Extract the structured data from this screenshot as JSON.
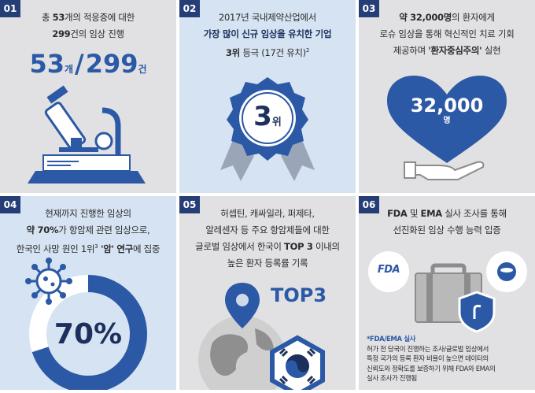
{
  "panels": [
    {
      "num": "01",
      "line1_a": "총 ",
      "line1_b": "53",
      "line1_c": "개의 적응증에 대한",
      "line2_a": "299",
      "line2_b": "건의 임상 진행",
      "big_a": "53",
      "big_unit_a": "개",
      "big_sep": "/",
      "big_b": "299",
      "big_unit_b": "건",
      "icon": "microscope-icon"
    },
    {
      "num": "02",
      "line1": "2017년 국내제약산업에서",
      "line2": "가장 많이 신규 임상을 유치한 기업",
      "line3_a": "3위",
      "line3_b": " 등극 (17건 유치)",
      "line3_sup": "2",
      "badge_num": "3",
      "badge_unit": "위",
      "icon": "award-badge-icon"
    },
    {
      "num": "03",
      "line1_a": "약 32,000명",
      "line1_b": "의 환자에게",
      "line2": "로슈 임상을 통해 혁신적인 치료 기회",
      "line3_a": "제공하며 ",
      "line3_b": "'환자중심주의'",
      "line3_c": " 실현",
      "heart_num": "32,000",
      "heart_unit": "명",
      "icon": "heart-hand-icon"
    },
    {
      "num": "04",
      "line1": "현재까지 진행한 임상의",
      "line2_a": "약 70%",
      "line2_b": "가 항암제 관련 임상으로,",
      "line3_a": "한국인 사망 원인 1위",
      "line3_sup": "3",
      "line3_b": " '암' 연구",
      "line3_c": "에 집중",
      "donut_label": "70%",
      "donut_value": 70,
      "icon": "virus-icon"
    },
    {
      "num": "05",
      "line1": "허셉틴, 캐싸일라, 퍼제타,",
      "line2": "알레센자 등 주요 항암제들에 대한",
      "line3_a": "글로벌 임상에서 한국이 ",
      "line3_b": "TOP 3",
      "line3_c": " 이내의",
      "line4": "높은 환자 등록률 기록",
      "top_label": "TOP3",
      "icon": "globe-location-icon"
    },
    {
      "num": "06",
      "line1_a": "FDA",
      "line1_b": " 및 ",
      "line1_c": "EMA",
      "line1_d": " 실사 조사를 통해",
      "line2": "선진화된 임상 수행 능력 입증",
      "fda_logo": "FDA",
      "note_title": "*FDA/EMA 실사",
      "note1": "허가 전 당국이 진행하는 조사/글로벌 임상에서",
      "note2": "특정 국가의 등록 환자 비율이 높으면 데이터의",
      "note3": "신뢰도와 정확도를 보증하기 위해 FDA와 EMA의",
      "note4": "실사 조사가 진행됨",
      "icon": "briefcase-shield-icon"
    }
  ],
  "colors": {
    "navy": "#253f76",
    "blue": "#2b59a5",
    "gray_panel": "#e1e1e3",
    "blue_panel": "#d5e3f2"
  }
}
